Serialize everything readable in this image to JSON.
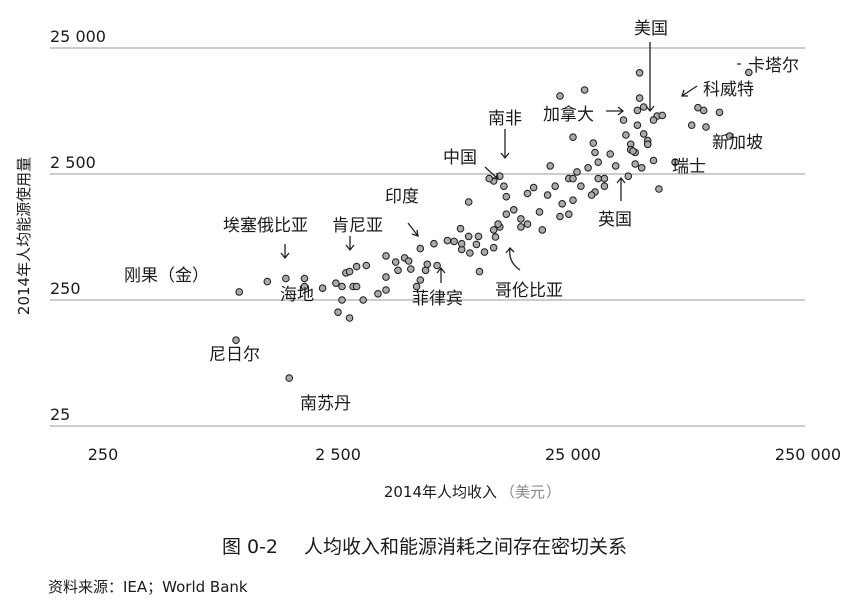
{
  "figure": {
    "number": "图 0-2",
    "title": "人均收入和能源消耗之间存在密切关系",
    "source": "资料来源：IEA；World Bank"
  },
  "chart_data": {
    "type": "scatter",
    "xlabel": {
      "text": "2014年人均收入",
      "unit": "美元"
    },
    "ylabel": "2014年人均能源使用量",
    "xscale": "log",
    "yscale": "log",
    "xlim": [
      250,
      250000
    ],
    "ylim": [
      25,
      25000
    ],
    "xticks": [
      {
        "value": 250,
        "label": "250"
      },
      {
        "value": 2500,
        "label": "2 500"
      },
      {
        "value": 25000,
        "label": "25 000"
      },
      {
        "value": 250000,
        "label": "250 000"
      }
    ],
    "yticks": [
      {
        "value": 25,
        "label": "25"
      },
      {
        "value": 250,
        "label": "250"
      },
      {
        "value": 2500,
        "label": "2 500"
      },
      {
        "value": 25000,
        "label": "25 000"
      }
    ],
    "grid": {
      "horizontal": true,
      "vertical": false
    },
    "marker_color": "#aaaaaa",
    "points": [
      [
        950,
        290
      ],
      [
        920,
        120
      ],
      [
        1550,
        60
      ],
      [
        1250,
        350
      ],
      [
        1800,
        320
      ],
      [
        1800,
        370
      ],
      [
        1500,
        370
      ],
      [
        2150,
        310
      ],
      [
        2450,
        340
      ],
      [
        2700,
        410
      ],
      [
        2800,
        420
      ],
      [
        2600,
        320
      ],
      [
        2900,
        320
      ],
      [
        3000,
        460
      ],
      [
        3300,
        470
      ],
      [
        2600,
        250
      ],
      [
        2500,
        200
      ],
      [
        2800,
        180
      ],
      [
        3200,
        250
      ],
      [
        3000,
        320
      ],
      [
        3700,
        280
      ],
      [
        4000,
        300
      ],
      [
        4000,
        380
      ],
      [
        4400,
        500
      ],
      [
        4000,
        560
      ],
      [
        4800,
        540
      ],
      [
        4500,
        430
      ],
      [
        5000,
        510
      ],
      [
        5100,
        440
      ],
      [
        5400,
        320
      ],
      [
        5600,
        360
      ],
      [
        5900,
        430
      ],
      [
        6000,
        480
      ],
      [
        6600,
        470
      ],
      [
        5600,
        640
      ],
      [
        6400,
        700
      ],
      [
        7300,
        740
      ],
      [
        7800,
        730
      ],
      [
        8300,
        920
      ],
      [
        9000,
        800
      ],
      [
        9000,
        1500
      ],
      [
        8400,
        630
      ],
      [
        8400,
        700
      ],
      [
        9900,
        800
      ],
      [
        9700,
        690
      ],
      [
        9100,
        590
      ],
      [
        10500,
        600
      ],
      [
        10000,
        420
      ],
      [
        11500,
        650
      ],
      [
        11500,
        900
      ],
      [
        12200,
        950
      ],
      [
        11700,
        790
      ],
      [
        11500,
        2200
      ],
      [
        12200,
        2400
      ],
      [
        12700,
        2000
      ],
      [
        11000,
        2300
      ],
      [
        12000,
        1000
      ],
      [
        13000,
        1200
      ],
      [
        15000,
        950
      ],
      [
        16000,
        1000
      ],
      [
        15000,
        1100
      ],
      [
        14000,
        1300
      ],
      [
        13000,
        1650
      ],
      [
        16000,
        1750
      ],
      [
        17000,
        1950
      ],
      [
        18000,
        1250
      ],
      [
        18500,
        900
      ],
      [
        19500,
        1700
      ],
      [
        20000,
        2900
      ],
      [
        21000,
        2000
      ],
      [
        22000,
        1150
      ],
      [
        22500,
        1450
      ],
      [
        24000,
        1200
      ],
      [
        25000,
        1550
      ],
      [
        24000,
        2300
      ],
      [
        27000,
        2000
      ],
      [
        26000,
        2600
      ],
      [
        29000,
        2800
      ],
      [
        31000,
        1800
      ],
      [
        30500,
        4400
      ],
      [
        31000,
        3700
      ],
      [
        32000,
        3100
      ],
      [
        34000,
        2000
      ],
      [
        34000,
        2300
      ],
      [
        36000,
        3600
      ],
      [
        32000,
        2300
      ],
      [
        25000,
        4900
      ],
      [
        38000,
        2900
      ],
      [
        41000,
        6700
      ],
      [
        42000,
        5100
      ],
      [
        44000,
        4300
      ],
      [
        44000,
        3900
      ],
      [
        46000,
        3700
      ],
      [
        25000,
        2300
      ],
      [
        30000,
        1700
      ],
      [
        22000,
        10400
      ],
      [
        28000,
        11600
      ],
      [
        47000,
        8000
      ],
      [
        48000,
        10000
      ],
      [
        50000,
        5200
      ],
      [
        52000,
        4600
      ],
      [
        52000,
        4300
      ],
      [
        47000,
        6100
      ],
      [
        45000,
        3800
      ],
      [
        49000,
        2800
      ],
      [
        50000,
        8500
      ],
      [
        46000,
        3000
      ],
      [
        52000,
        4300
      ],
      [
        55000,
        3200
      ],
      [
        57000,
        7200
      ],
      [
        60000,
        7300
      ],
      [
        58000,
        1900
      ],
      [
        68000,
        3100
      ],
      [
        80000,
        6100
      ],
      [
        85000,
        8400
      ],
      [
        90000,
        8000
      ],
      [
        92000,
        5900
      ],
      [
        105000,
        7700
      ],
      [
        116000,
        5000
      ],
      [
        140000,
        16000
      ],
      [
        48000,
        15900
      ],
      [
        43000,
        2400
      ],
      [
        55000,
        6700
      ]
    ],
    "annotations": [
      "刚果（金）",
      "尼日尔",
      "南苏丹",
      "海地",
      "埃塞俄比亚",
      "肯尼亚",
      "印度",
      "菲律宾",
      "中国",
      "南非",
      "哥伦比亚",
      "英国",
      "加拿大",
      "美国",
      "科威特",
      "卡塔尔",
      "新加坡",
      "瑞士"
    ]
  }
}
